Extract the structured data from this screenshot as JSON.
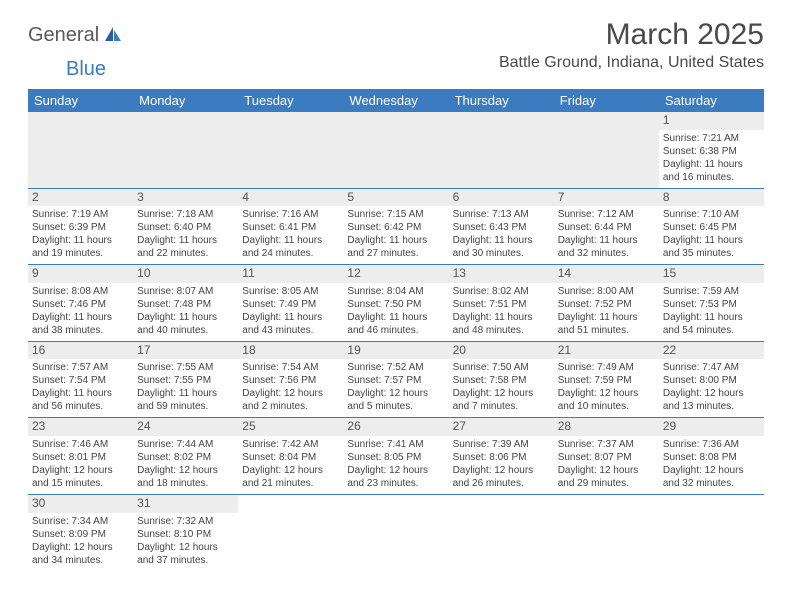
{
  "logo": {
    "part1": "General",
    "part2": "Blue"
  },
  "title": "March 2025",
  "location": "Battle Ground, Indiana, United States",
  "colors": {
    "header_bg": "#3b7bbf",
    "header_text": "#ffffff",
    "daynum_bg": "#ededed",
    "border": "#3b7bbf",
    "text": "#444444"
  },
  "day_headers": [
    "Sunday",
    "Monday",
    "Tuesday",
    "Wednesday",
    "Thursday",
    "Friday",
    "Saturday"
  ],
  "weeks": [
    [
      null,
      null,
      null,
      null,
      null,
      null,
      {
        "n": "1",
        "sr": "7:21 AM",
        "ss": "6:38 PM",
        "dl": "11 hours and 16 minutes."
      }
    ],
    [
      {
        "n": "2",
        "sr": "7:19 AM",
        "ss": "6:39 PM",
        "dl": "11 hours and 19 minutes."
      },
      {
        "n": "3",
        "sr": "7:18 AM",
        "ss": "6:40 PM",
        "dl": "11 hours and 22 minutes."
      },
      {
        "n": "4",
        "sr": "7:16 AM",
        "ss": "6:41 PM",
        "dl": "11 hours and 24 minutes."
      },
      {
        "n": "5",
        "sr": "7:15 AM",
        "ss": "6:42 PM",
        "dl": "11 hours and 27 minutes."
      },
      {
        "n": "6",
        "sr": "7:13 AM",
        "ss": "6:43 PM",
        "dl": "11 hours and 30 minutes."
      },
      {
        "n": "7",
        "sr": "7:12 AM",
        "ss": "6:44 PM",
        "dl": "11 hours and 32 minutes."
      },
      {
        "n": "8",
        "sr": "7:10 AM",
        "ss": "6:45 PM",
        "dl": "11 hours and 35 minutes."
      }
    ],
    [
      {
        "n": "9",
        "sr": "8:08 AM",
        "ss": "7:46 PM",
        "dl": "11 hours and 38 minutes."
      },
      {
        "n": "10",
        "sr": "8:07 AM",
        "ss": "7:48 PM",
        "dl": "11 hours and 40 minutes."
      },
      {
        "n": "11",
        "sr": "8:05 AM",
        "ss": "7:49 PM",
        "dl": "11 hours and 43 minutes."
      },
      {
        "n": "12",
        "sr": "8:04 AM",
        "ss": "7:50 PM",
        "dl": "11 hours and 46 minutes."
      },
      {
        "n": "13",
        "sr": "8:02 AM",
        "ss": "7:51 PM",
        "dl": "11 hours and 48 minutes."
      },
      {
        "n": "14",
        "sr": "8:00 AM",
        "ss": "7:52 PM",
        "dl": "11 hours and 51 minutes."
      },
      {
        "n": "15",
        "sr": "7:59 AM",
        "ss": "7:53 PM",
        "dl": "11 hours and 54 minutes."
      }
    ],
    [
      {
        "n": "16",
        "sr": "7:57 AM",
        "ss": "7:54 PM",
        "dl": "11 hours and 56 minutes."
      },
      {
        "n": "17",
        "sr": "7:55 AM",
        "ss": "7:55 PM",
        "dl": "11 hours and 59 minutes."
      },
      {
        "n": "18",
        "sr": "7:54 AM",
        "ss": "7:56 PM",
        "dl": "12 hours and 2 minutes."
      },
      {
        "n": "19",
        "sr": "7:52 AM",
        "ss": "7:57 PM",
        "dl": "12 hours and 5 minutes."
      },
      {
        "n": "20",
        "sr": "7:50 AM",
        "ss": "7:58 PM",
        "dl": "12 hours and 7 minutes."
      },
      {
        "n": "21",
        "sr": "7:49 AM",
        "ss": "7:59 PM",
        "dl": "12 hours and 10 minutes."
      },
      {
        "n": "22",
        "sr": "7:47 AM",
        "ss": "8:00 PM",
        "dl": "12 hours and 13 minutes."
      }
    ],
    [
      {
        "n": "23",
        "sr": "7:46 AM",
        "ss": "8:01 PM",
        "dl": "12 hours and 15 minutes."
      },
      {
        "n": "24",
        "sr": "7:44 AM",
        "ss": "8:02 PM",
        "dl": "12 hours and 18 minutes."
      },
      {
        "n": "25",
        "sr": "7:42 AM",
        "ss": "8:04 PM",
        "dl": "12 hours and 21 minutes."
      },
      {
        "n": "26",
        "sr": "7:41 AM",
        "ss": "8:05 PM",
        "dl": "12 hours and 23 minutes."
      },
      {
        "n": "27",
        "sr": "7:39 AM",
        "ss": "8:06 PM",
        "dl": "12 hours and 26 minutes."
      },
      {
        "n": "28",
        "sr": "7:37 AM",
        "ss": "8:07 PM",
        "dl": "12 hours and 29 minutes."
      },
      {
        "n": "29",
        "sr": "7:36 AM",
        "ss": "8:08 PM",
        "dl": "12 hours and 32 minutes."
      }
    ],
    [
      {
        "n": "30",
        "sr": "7:34 AM",
        "ss": "8:09 PM",
        "dl": "12 hours and 34 minutes."
      },
      {
        "n": "31",
        "sr": "7:32 AM",
        "ss": "8:10 PM",
        "dl": "12 hours and 37 minutes."
      },
      null,
      null,
      null,
      null,
      null
    ]
  ],
  "labels": {
    "sunrise": "Sunrise:",
    "sunset": "Sunset:",
    "daylight": "Daylight:"
  }
}
